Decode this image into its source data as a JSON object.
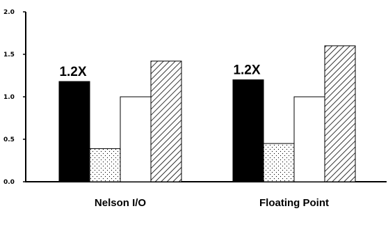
{
  "chart_data": {
    "type": "bar",
    "categories": [
      "Nelson I/O",
      "Floating Point"
    ],
    "series": [
      {
        "values": [
          1.18,
          1.2
        ],
        "pattern": "solid",
        "color": "#000000"
      },
      {
        "values": [
          0.39,
          0.45
        ],
        "pattern": "dots",
        "color": "#000000"
      },
      {
        "values": [
          1.0,
          1.0
        ],
        "pattern": "white",
        "color": "#ffffff"
      },
      {
        "values": [
          1.42,
          1.6
        ],
        "pattern": "diagonal-hatch",
        "color": "#000000"
      }
    ],
    "annotations": [
      {
        "category": "Nelson I/O",
        "text": "1.2X"
      },
      {
        "category": "Floating Point",
        "text": "1.2X"
      }
    ],
    "yticks": [
      "0.0",
      "0.5",
      "1.0",
      "1.5",
      "2.0"
    ],
    "ylim": [
      0,
      2.0
    ],
    "grid": false,
    "legend": "none"
  }
}
